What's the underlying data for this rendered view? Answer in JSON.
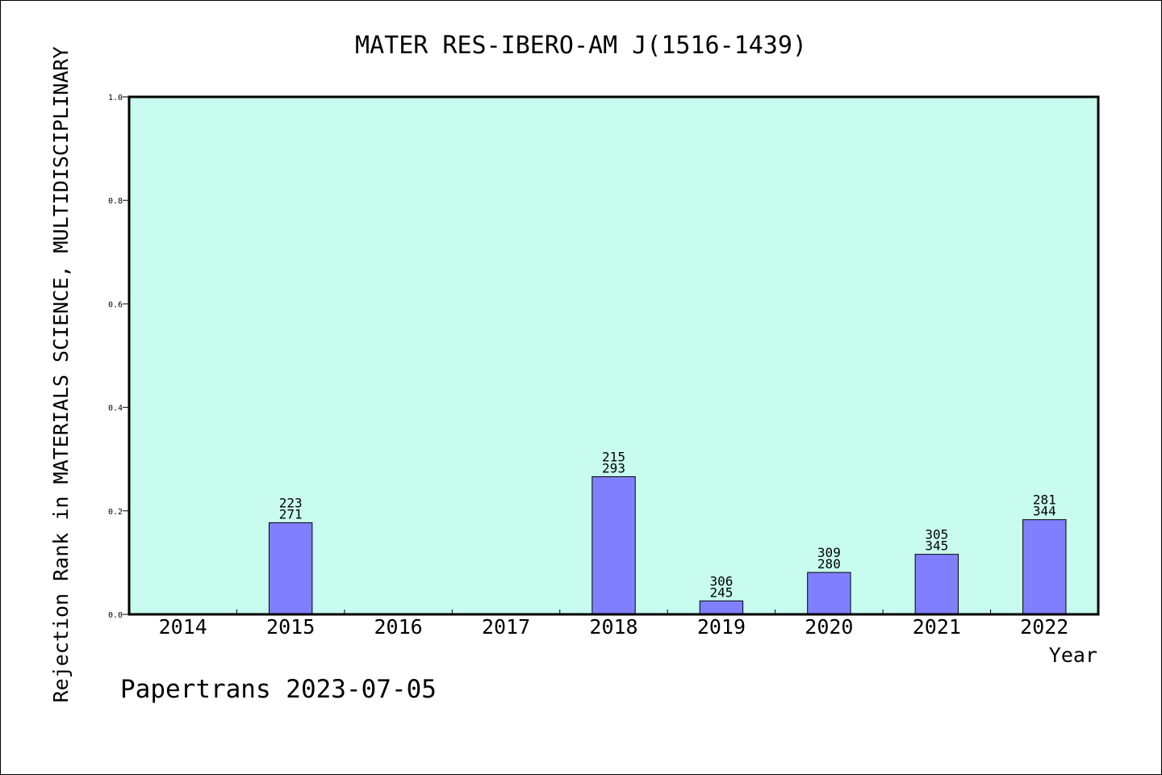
{
  "chart_data": {
    "type": "bar",
    "title": "MATER RES-IBERO-AM J(1516-1439)",
    "xlabel": "Year",
    "ylabel": "Rejection Rank in MATERIALS SCIENCE, MULTIDISCIPLINARY",
    "categories": [
      "2014",
      "2015",
      "2016",
      "2017",
      "2018",
      "2019",
      "2020",
      "2021",
      "2022"
    ],
    "values": [
      null,
      0.177,
      null,
      null,
      0.266,
      0.026,
      0.081,
      0.116,
      0.183
    ],
    "bar_labels": [
      [
        "",
        ""
      ],
      [
        "223",
        "271"
      ],
      [
        "",
        ""
      ],
      [
        "",
        ""
      ],
      [
        "215",
        "293"
      ],
      [
        "306",
        "245"
      ],
      [
        "309",
        "280"
      ],
      [
        "305",
        "345"
      ],
      [
        "281",
        "344"
      ]
    ],
    "ylim": [
      0,
      1.0
    ],
    "yticks": [
      "0.0",
      "0.2",
      "0.4",
      "0.6",
      "0.8",
      "1.0"
    ],
    "ytick_values": [
      0,
      0.2,
      0.4,
      0.6,
      0.8,
      1.0
    ],
    "grid": false,
    "legend": "none",
    "colors": {
      "plot_background": "#c8fcee",
      "bar_fill": "#8080ff",
      "bar_stroke": "#000000",
      "axis": "#000000"
    }
  },
  "footer": {
    "credit": "Papertrans 2023-07-05"
  }
}
